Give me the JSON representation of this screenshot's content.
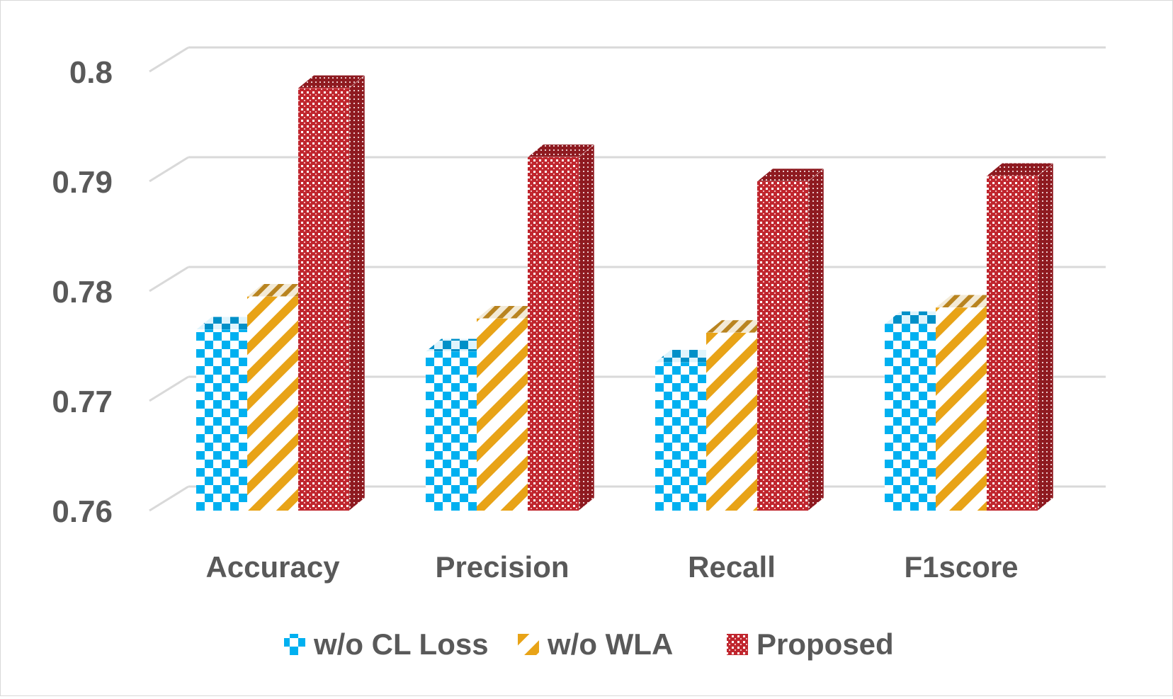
{
  "chart_data": {
    "type": "bar",
    "title": "",
    "xlabel": "",
    "ylabel": "",
    "categories": [
      "Accuracy",
      "Precision",
      "Recall",
      "F1score"
    ],
    "series": [
      {
        "name": "w/o CL Loss",
        "values": [
          0.7765,
          0.7745,
          0.7735,
          0.777
        ],
        "color": "#00b0f0",
        "pattern": "checkerboard"
      },
      {
        "name": "w/o WLA",
        "values": [
          0.7795,
          0.7775,
          0.7762,
          0.7785
        ],
        "color": "#e8a317",
        "pattern": "diagonal-stripes"
      },
      {
        "name": "Proposed",
        "values": [
          0.7985,
          0.7922,
          0.79,
          0.7905
        ],
        "color": "#c0262e",
        "pattern": "dotted-grid"
      }
    ],
    "ylim": [
      0.76,
      0.8
    ],
    "yticks": [
      "0.76",
      "0.77",
      "0.78",
      "0.79",
      "0.8"
    ],
    "grid": true,
    "legend": "bottom"
  }
}
